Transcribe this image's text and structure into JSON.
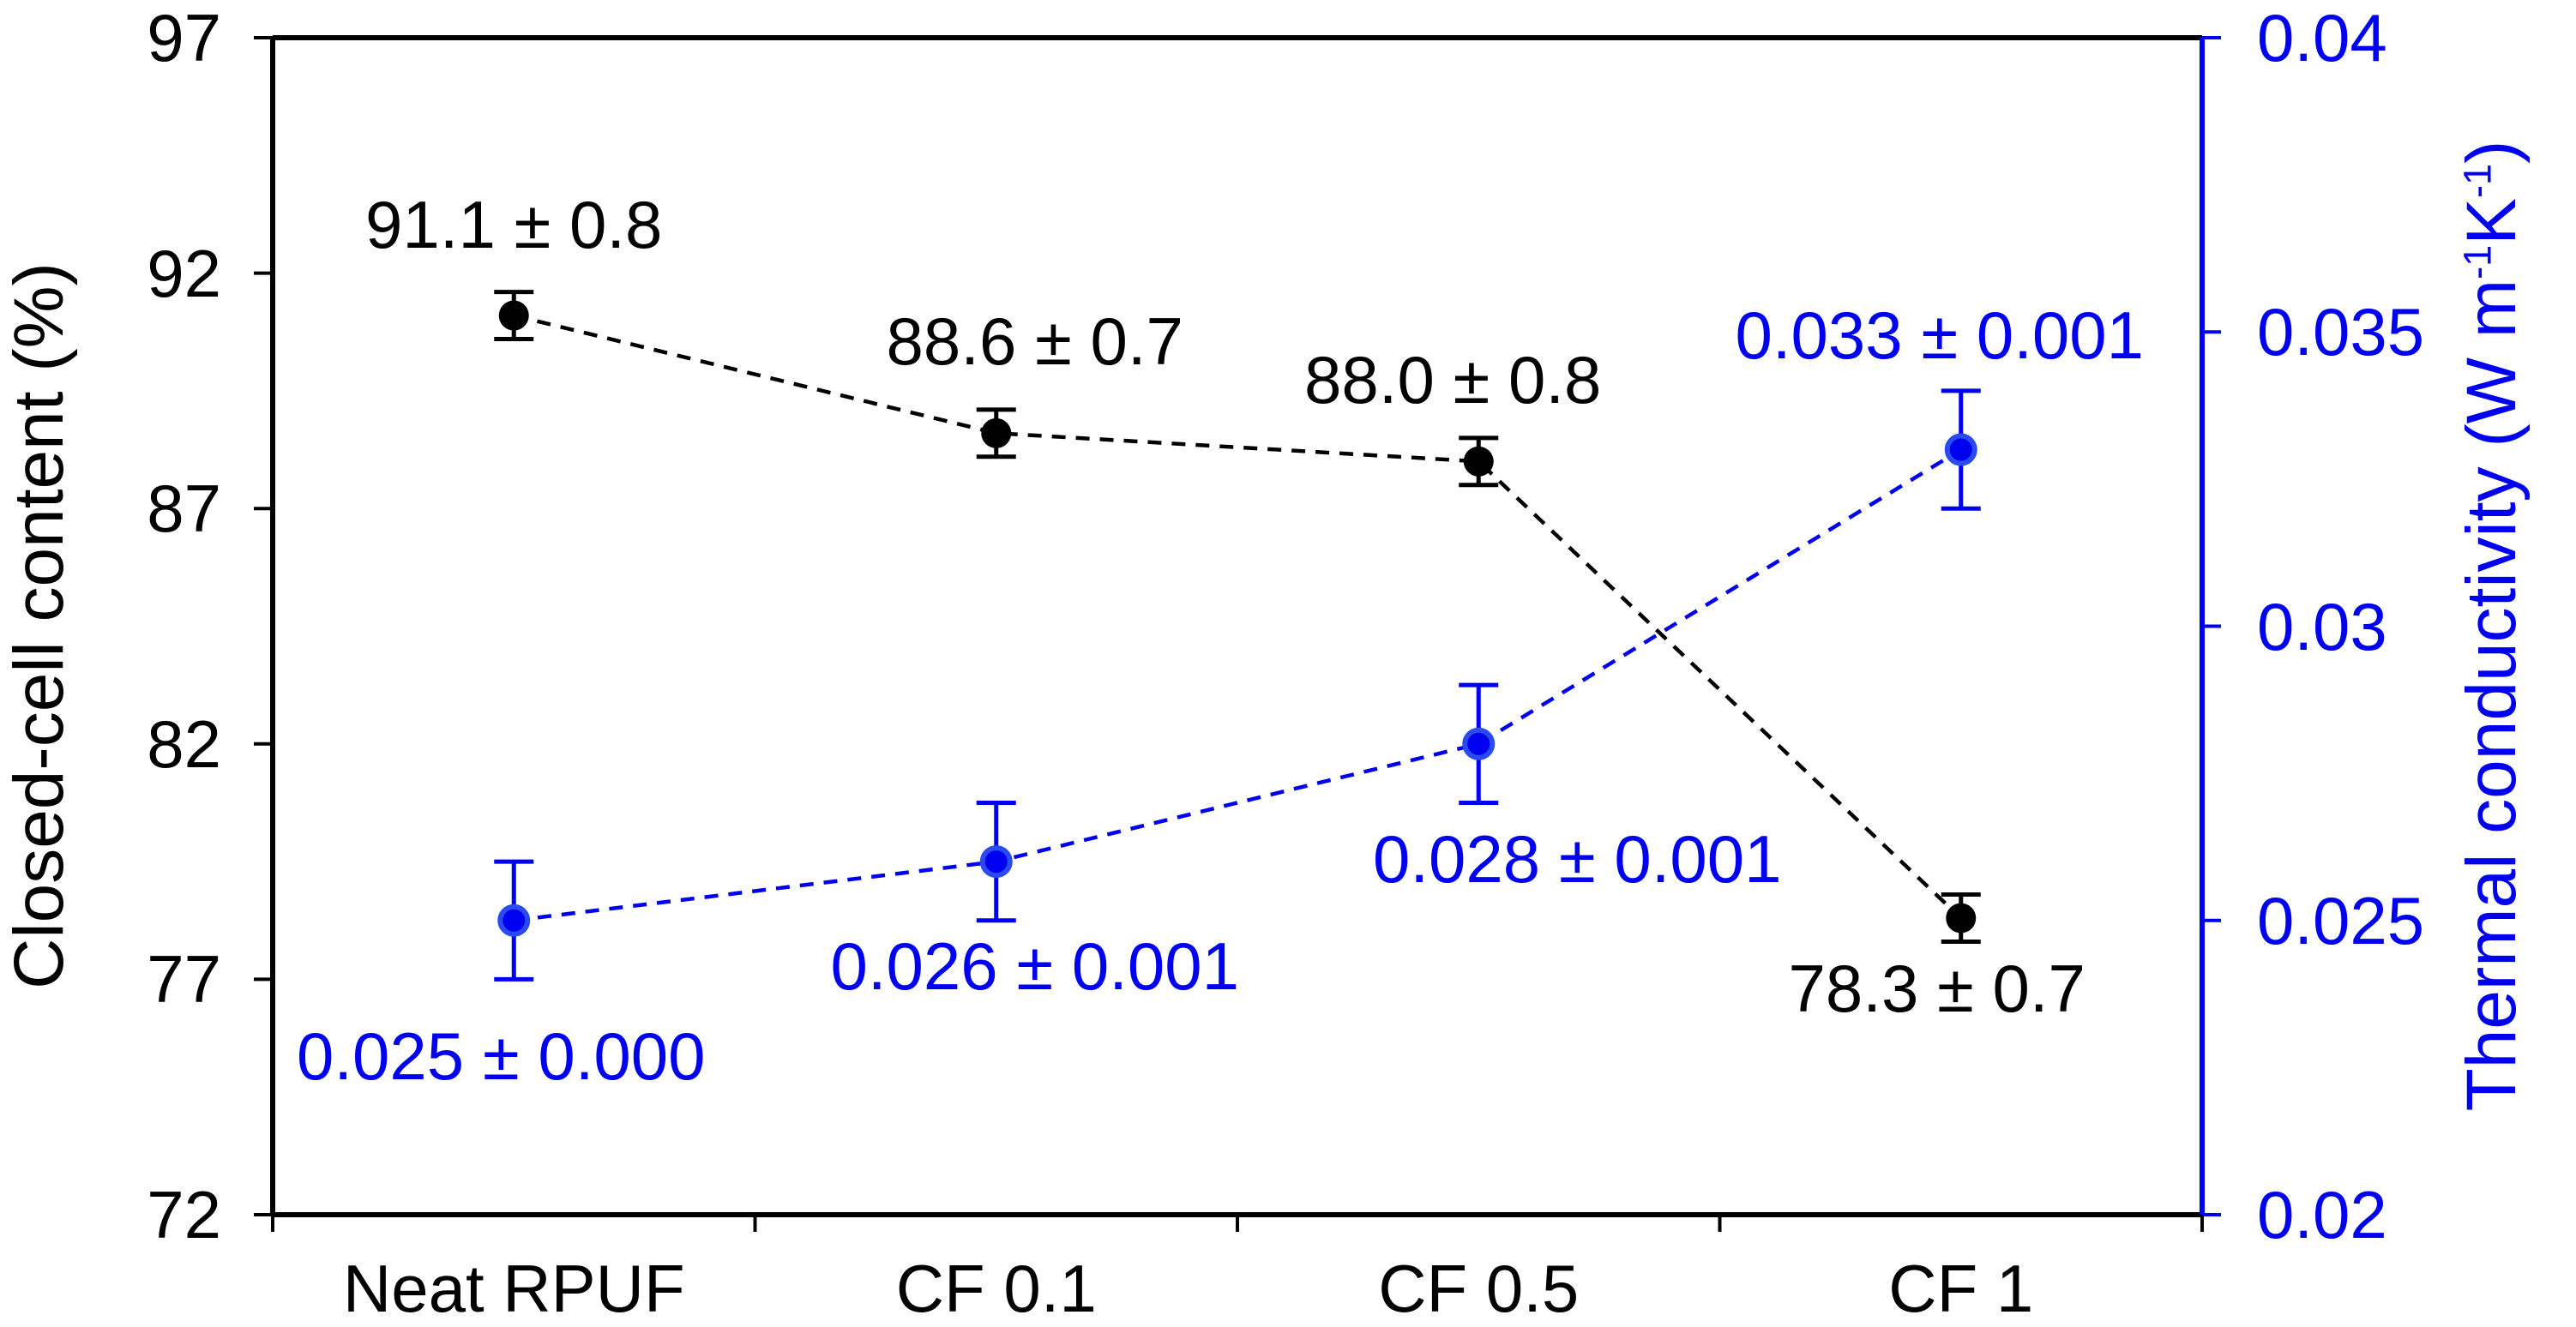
{
  "chart_data": {
    "type": "line",
    "categories": [
      "Neat RPUF",
      "CF 0.1",
      "CF 0.5",
      "CF 1"
    ],
    "series": [
      {
        "name": "Closed-cell content",
        "axis": "left",
        "color": "#000000",
        "marker": "circle",
        "line_style": "dashed",
        "values": [
          91.1,
          88.6,
          88.0,
          78.3
        ],
        "errors": [
          0.8,
          0.7,
          0.8,
          0.7
        ],
        "error_bar_drawn": 0.5,
        "point_labels": [
          "91.1 ± 0.8",
          "88.6 ± 0.7",
          "88.0 ± 0.8",
          "78.3 ± 0.7"
        ],
        "label_side": [
          "above",
          "above",
          "above",
          "below"
        ]
      },
      {
        "name": "Thermal conductivity",
        "axis": "right",
        "color": "#0000f0",
        "marker": "circle",
        "line_style": "dashed",
        "values": [
          0.025,
          0.026,
          0.028,
          0.033
        ],
        "errors": [
          0.0,
          0.001,
          0.001,
          0.001
        ],
        "error_bar_drawn": 0.001,
        "point_labels": [
          "0.025 ± 0.000",
          "0.026 ± 0.001",
          "0.028 ± 0.001",
          "0.033 ± 0.001"
        ],
        "label_side": [
          "below",
          "below",
          "below",
          "above"
        ]
      }
    ],
    "left_axis": {
      "title": "Closed-cell content (%)",
      "tick_labels": [
        "97",
        "92",
        "87",
        "82",
        "77",
        "72"
      ],
      "tick_values": [
        97,
        92,
        87,
        82,
        77,
        72
      ],
      "min": 72,
      "max": 97,
      "color": "#000000"
    },
    "right_axis": {
      "title_prefix": "Thermal conductivity (W m",
      "title_sup1": "-1",
      "title_mid": "K",
      "title_sup2": "-1",
      "title_suffix": ")",
      "tick_labels": [
        "0.04",
        "0.035",
        "0.03",
        "0.025",
        "0.02"
      ],
      "tick_values": [
        0.04,
        0.035,
        0.03,
        0.025,
        0.02
      ],
      "min": 0.02,
      "max": 0.04,
      "color": "#0000f0"
    },
    "grid": false,
    "legend": false,
    "background": "#ffffff"
  }
}
